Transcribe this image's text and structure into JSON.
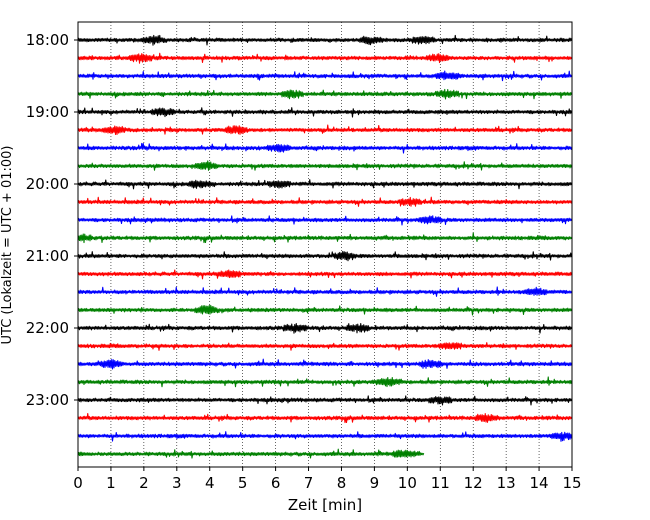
{
  "chart_data": {
    "type": "line",
    "xlabel": "Zeit  [min]",
    "ylabel": "UTC (Lokalzeit = UTC + 01:00)",
    "xlim": [
      0,
      15
    ],
    "xticks": [
      0,
      1,
      2,
      3,
      4,
      5,
      6,
      7,
      8,
      9,
      10,
      11,
      12,
      13,
      14,
      15
    ],
    "xgrid": "dotted vertical lines at each minute",
    "yticks": [
      "18:00",
      "19:00",
      "20:00",
      "21:00",
      "22:00",
      "23:00"
    ],
    "trace_interval_min": 15,
    "start_time": "18:00",
    "color_cycle": [
      "#000000",
      "#ff0000",
      "#0000ff",
      "#008000"
    ],
    "traces": [
      {
        "start": "18:00",
        "color": "#000000",
        "end_min": 15,
        "events_min": [
          2.3,
          8.9,
          10.5
        ]
      },
      {
        "start": "18:15",
        "color": "#ff0000",
        "end_min": 15,
        "events_min": [
          1.9,
          10.9
        ]
      },
      {
        "start": "18:30",
        "color": "#0000ff",
        "end_min": 15,
        "events_min": [
          11.2
        ]
      },
      {
        "start": "18:45",
        "color": "#008000",
        "end_min": 15,
        "events_min": [
          6.5,
          11.2
        ]
      },
      {
        "start": "19:00",
        "color": "#000000",
        "end_min": 15,
        "events_min": [
          2.6
        ]
      },
      {
        "start": "19:15",
        "color": "#ff0000",
        "end_min": 15,
        "events_min": [
          1.1,
          4.8
        ]
      },
      {
        "start": "19:30",
        "color": "#0000ff",
        "end_min": 15,
        "events_min": [
          6.1
        ]
      },
      {
        "start": "19:45",
        "color": "#008000",
        "end_min": 15,
        "events_min": [
          3.9
        ]
      },
      {
        "start": "20:00",
        "color": "#000000",
        "end_min": 15,
        "events_min": [
          3.7,
          6.1
        ]
      },
      {
        "start": "20:15",
        "color": "#ff0000",
        "end_min": 15,
        "events_min": [
          10.1
        ]
      },
      {
        "start": "20:30",
        "color": "#0000ff",
        "end_min": 15,
        "events_min": [
          10.7
        ]
      },
      {
        "start": "20:45",
        "color": "#008000",
        "end_min": 15,
        "events_min": [
          0.1
        ]
      },
      {
        "start": "21:00",
        "color": "#000000",
        "end_min": 15,
        "events_min": [
          8.1
        ]
      },
      {
        "start": "21:15",
        "color": "#ff0000",
        "end_min": 15,
        "events_min": [
          4.6
        ]
      },
      {
        "start": "21:30",
        "color": "#0000ff",
        "end_min": 15,
        "events_min": [
          13.9
        ]
      },
      {
        "start": "21:45",
        "color": "#008000",
        "end_min": 15,
        "events_min": [
          3.9
        ]
      },
      {
        "start": "22:00",
        "color": "#000000",
        "end_min": 15,
        "events_min": [
          6.6,
          8.5
        ]
      },
      {
        "start": "22:15",
        "color": "#ff0000",
        "end_min": 15,
        "events_min": [
          11.3
        ]
      },
      {
        "start": "22:30",
        "color": "#0000ff",
        "end_min": 15,
        "events_min": [
          1.0,
          10.7
        ]
      },
      {
        "start": "22:45",
        "color": "#008000",
        "end_min": 15,
        "events_min": [
          9.4
        ]
      },
      {
        "start": "23:00",
        "color": "#000000",
        "end_min": 15,
        "events_min": [
          11.0
        ]
      },
      {
        "start": "23:15",
        "color": "#ff0000",
        "end_min": 15,
        "events_min": [
          12.4
        ]
      },
      {
        "start": "23:30",
        "color": "#0000ff",
        "end_min": 15,
        "events_min": [
          14.7
        ]
      },
      {
        "start": "23:45",
        "color": "#008000",
        "end_min": 10.5,
        "events_min": [
          9.9
        ]
      }
    ]
  }
}
